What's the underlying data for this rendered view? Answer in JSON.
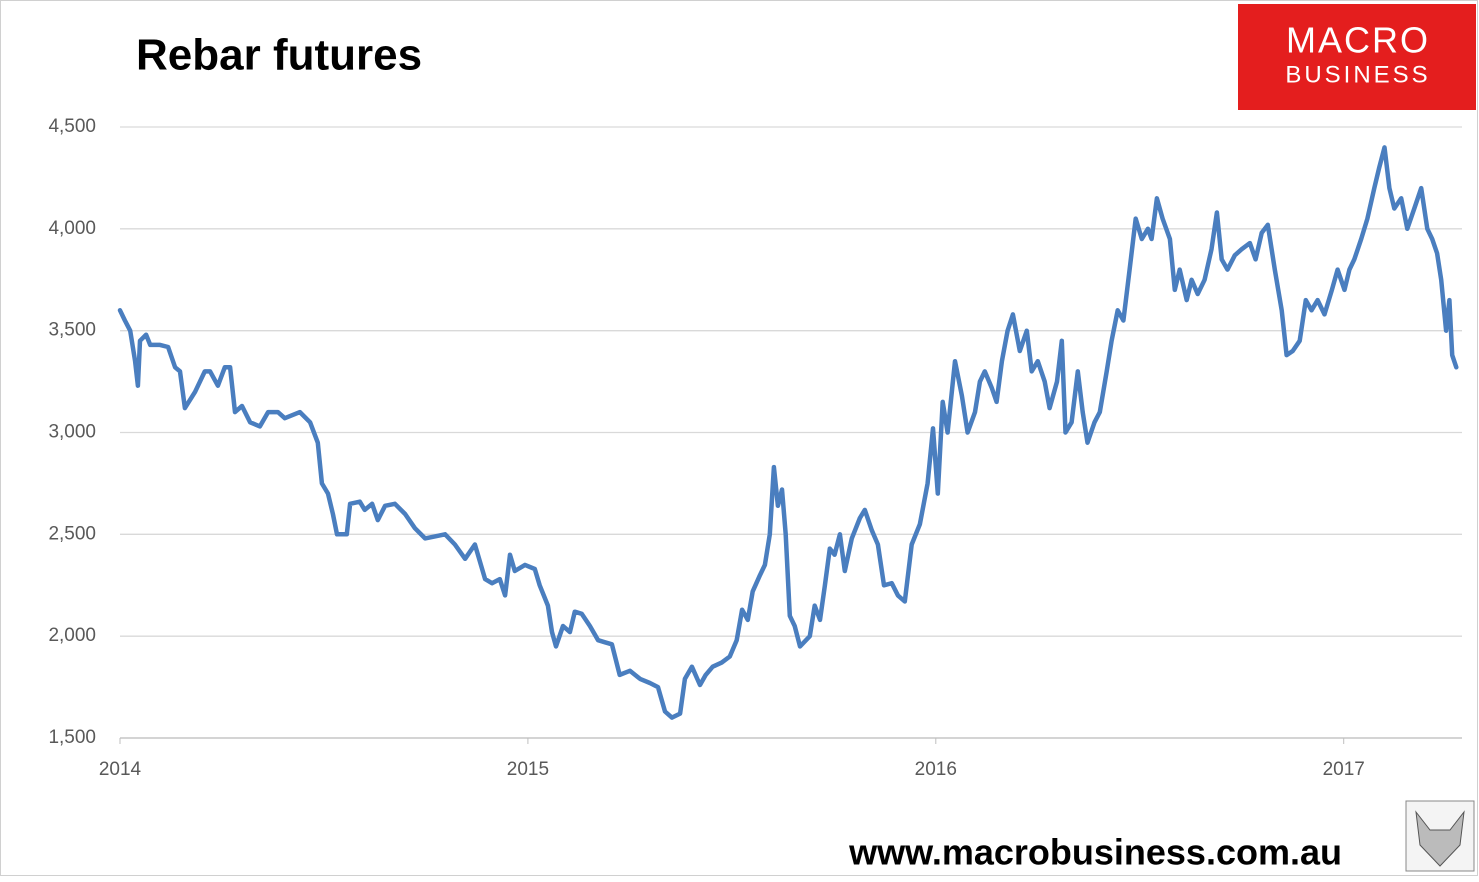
{
  "chart_data": {
    "type": "line",
    "title": "Rebar futures",
    "color": "#4a7ebf",
    "grid": true,
    "xlim": [
      2014,
      2017.29
    ],
    "xticks": [
      2014,
      2015,
      2016,
      2017
    ],
    "ylim": [
      1500,
      4500
    ],
    "yticks": [
      {
        "value": 1500,
        "label": "1,500"
      },
      {
        "value": 2000,
        "label": "2,000"
      },
      {
        "value": 2500,
        "label": "2,500"
      },
      {
        "value": 3000,
        "label": "3,000"
      },
      {
        "value": 3500,
        "label": "3,500"
      },
      {
        "value": 4000,
        "label": "4,000"
      },
      {
        "value": 4500,
        "label": "4,500"
      }
    ],
    "x": [
      2014.0,
      2014.012,
      2014.025,
      2014.037,
      2014.044,
      2014.049,
      2014.064,
      2014.074,
      2014.098,
      2014.118,
      2014.135,
      2014.147,
      2014.159,
      2014.184,
      2014.208,
      2014.221,
      2014.24,
      2014.257,
      2014.27,
      2014.282,
      2014.299,
      2014.319,
      2014.343,
      2014.363,
      2014.387,
      2014.404,
      2014.441,
      2014.466,
      2014.485,
      2014.495,
      2014.51,
      2014.522,
      2014.532,
      2014.556,
      2014.564,
      2014.588,
      2014.6,
      2014.618,
      2014.632,
      2014.65,
      2014.674,
      2014.699,
      2014.723,
      2014.748,
      2014.772,
      2014.797,
      2014.821,
      2014.846,
      2014.87,
      2014.895,
      2014.912,
      2014.931,
      2014.944,
      2014.956,
      2014.968,
      2014.993,
      2015.017,
      2015.029,
      2015.049,
      2015.059,
      2015.069,
      2015.086,
      2015.103,
      2015.115,
      2015.132,
      2015.152,
      2015.172,
      2015.189,
      2015.206,
      2015.225,
      2015.25,
      2015.275,
      2015.299,
      2015.319,
      2015.336,
      2015.353,
      2015.373,
      2015.385,
      2015.402,
      2015.422,
      2015.436,
      2015.453,
      2015.475,
      2015.495,
      2015.512,
      2015.525,
      2015.539,
      2015.551,
      2015.569,
      2015.581,
      2015.593,
      2015.603,
      2015.613,
      2015.623,
      2015.632,
      2015.642,
      2015.654,
      2015.667,
      2015.691,
      2015.703,
      2015.716,
      2015.728,
      2015.74,
      2015.752,
      2015.765,
      2015.777,
      2015.794,
      2015.814,
      2015.826,
      2015.843,
      2015.858,
      2015.873,
      2015.892,
      2015.907,
      2015.924,
      2015.941,
      2015.961,
      2015.98,
      2015.993,
      2016.005,
      2016.017,
      2016.029,
      2016.047,
      2016.064,
      2016.078,
      2016.096,
      2016.108,
      2016.12,
      2016.137,
      2016.149,
      2016.162,
      2016.176,
      2016.189,
      2016.206,
      2016.223,
      2016.235,
      2016.25,
      2016.267,
      2016.279,
      2016.297,
      2016.309,
      2016.318,
      2016.333,
      2016.348,
      2016.36,
      2016.372,
      2016.389,
      2016.402,
      2016.419,
      2016.431,
      2016.446,
      2016.46,
      2016.475,
      2016.49,
      2016.505,
      2016.52,
      2016.529,
      2016.542,
      2016.556,
      2016.574,
      2016.586,
      2016.598,
      2016.615,
      2016.627,
      2016.642,
      2016.659,
      2016.676,
      2016.689,
      2016.701,
      2016.715,
      2016.733,
      2016.75,
      2016.77,
      2016.784,
      2016.799,
      2016.814,
      2016.831,
      2016.848,
      2016.86,
      2016.875,
      2016.892,
      2016.907,
      2016.921,
      2016.936,
      2016.953,
      2016.971,
      2016.985,
      2017.002,
      2017.014,
      2017.026,
      2017.043,
      2017.058,
      2017.075,
      2017.087,
      2017.1,
      2017.112,
      2017.124,
      2017.141,
      2017.156,
      2017.173,
      2017.19,
      2017.205,
      2017.217,
      2017.229,
      2017.239,
      2017.251,
      2017.259,
      2017.266,
      2017.276
    ],
    "values": [
      3600,
      3550,
      3500,
      3350,
      3230,
      3450,
      3480,
      3430,
      3430,
      3420,
      3320,
      3300,
      3120,
      3200,
      3300,
      3300,
      3230,
      3320,
      3320,
      3100,
      3130,
      3050,
      3030,
      3100,
      3100,
      3070,
      3100,
      3050,
      2950,
      2750,
      2700,
      2600,
      2500,
      2500,
      2650,
      2660,
      2620,
      2650,
      2570,
      2640,
      2650,
      2600,
      2530,
      2480,
      2490,
      2500,
      2450,
      2380,
      2450,
      2280,
      2260,
      2280,
      2200,
      2400,
      2320,
      2350,
      2330,
      2250,
      2150,
      2020,
      1950,
      2050,
      2020,
      2120,
      2110,
      2050,
      1980,
      1970,
      1960,
      1810,
      1830,
      1790,
      1770,
      1750,
      1630,
      1600,
      1620,
      1790,
      1850,
      1760,
      1810,
      1850,
      1870,
      1900,
      1980,
      2130,
      2080,
      2220,
      2300,
      2350,
      2500,
      2830,
      2640,
      2720,
      2500,
      2100,
      2050,
      1950,
      2000,
      2150,
      2080,
      2250,
      2430,
      2400,
      2500,
      2320,
      2480,
      2580,
      2620,
      2520,
      2450,
      2250,
      2260,
      2200,
      2170,
      2450,
      2550,
      2750,
      3020,
      2700,
      3150,
      3000,
      3350,
      3180,
      3000,
      3100,
      3250,
      3300,
      3220,
      3150,
      3350,
      3500,
      3580,
      3400,
      3500,
      3300,
      3350,
      3250,
      3120,
      3250,
      3450,
      3000,
      3050,
      3300,
      3100,
      2950,
      3050,
      3100,
      3300,
      3450,
      3600,
      3550,
      3800,
      4050,
      3950,
      4000,
      3950,
      4150,
      4050,
      3950,
      3700,
      3800,
      3650,
      3750,
      3680,
      3750,
      3900,
      4080,
      3850,
      3800,
      3870,
      3900,
      3930,
      3850,
      3980,
      4020,
      3800,
      3600,
      3380,
      3400,
      3450,
      3650,
      3600,
      3650,
      3580,
      3700,
      3800,
      3700,
      3800,
      3850,
      3950,
      4050,
      4200,
      4300,
      4400,
      4200,
      4100,
      4150,
      4000,
      4100,
      4200,
      4000,
      3950,
      3880,
      3750,
      3500,
      3650,
      3380,
      3320
    ]
  },
  "branding": {
    "logo_top": "MACRO",
    "logo_bottom": "BUSINESS",
    "website": "www.macrobusiness.com.au"
  }
}
